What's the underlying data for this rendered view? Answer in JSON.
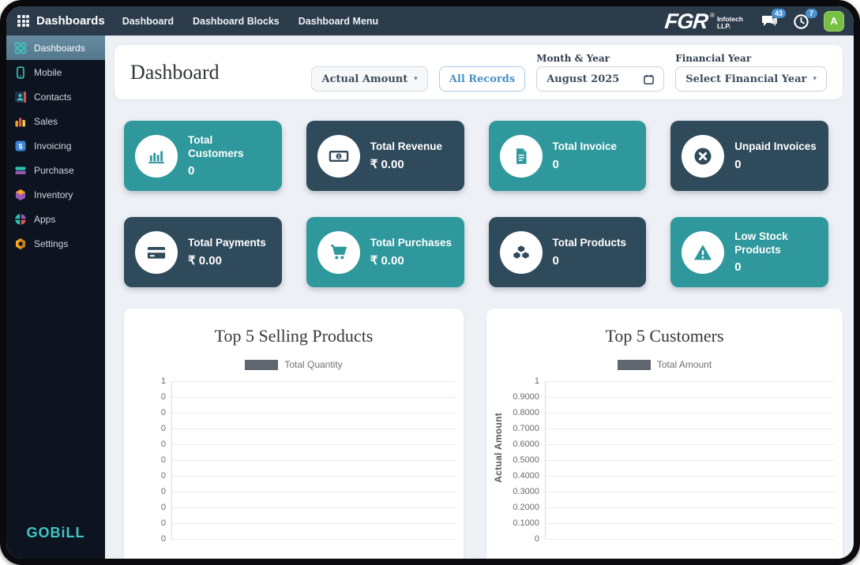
{
  "navbar": {
    "brand": "Dashboards",
    "links": [
      {
        "label": "Dashboard"
      },
      {
        "label": "Dashboard Blocks"
      },
      {
        "label": "Dashboard Menu"
      }
    ],
    "logo": {
      "text": "FGR",
      "reg": "®",
      "sub1": "Infotech",
      "sub2": "LLP."
    },
    "chat_badge": "43",
    "clock_badge": "7",
    "avatar_letter": "A"
  },
  "sidebar": {
    "items": [
      {
        "label": "Dashboards",
        "icon": "grid-icon",
        "active": true
      },
      {
        "label": "Mobile",
        "icon": "mobile-icon",
        "active": false
      },
      {
        "label": "Contacts",
        "icon": "contacts-icon",
        "active": false
      },
      {
        "label": "Sales",
        "icon": "sales-icon",
        "active": false
      },
      {
        "label": "Invoicing",
        "icon": "invoicing-icon",
        "active": false
      },
      {
        "label": "Purchase",
        "icon": "purchase-icon",
        "active": false
      },
      {
        "label": "Inventory",
        "icon": "inventory-icon",
        "active": false
      },
      {
        "label": "Apps",
        "icon": "apps-icon",
        "active": false
      },
      {
        "label": "Settings",
        "icon": "settings-icon",
        "active": false
      }
    ],
    "logo_text": "GOBiLL"
  },
  "header": {
    "title": "Dashboard",
    "metric_select_value": "Actual Amount",
    "all_records_label": "All Records",
    "month_year_label": "Month & Year",
    "month_year_value": "August 2025",
    "financial_year_label": "Financial Year",
    "financial_year_value": "Select Financial Year"
  },
  "stats": {
    "cards": [
      {
        "title": "Total Customers",
        "value": "0",
        "icon": "bar-chart-icon",
        "variant": "teal"
      },
      {
        "title": "Total Revenue",
        "value": "₹ 0.00",
        "icon": "banknote-icon",
        "variant": "navy"
      },
      {
        "title": "Total Invoice",
        "value": "0",
        "icon": "document-icon",
        "variant": "teal"
      },
      {
        "title": "Unpaid Invoices",
        "value": "0",
        "icon": "x-circle-icon",
        "variant": "navy"
      },
      {
        "title": "Total Payments",
        "value": "₹ 0.00",
        "icon": "credit-card-icon",
        "variant": "navy"
      },
      {
        "title": "Total Purchases",
        "value": "₹ 0.00",
        "icon": "cart-icon",
        "variant": "teal"
      },
      {
        "title": "Total Products",
        "value": "0",
        "icon": "cubes-icon",
        "variant": "navy"
      },
      {
        "title": "Low Stock Products",
        "value": "0",
        "icon": "warning-icon",
        "variant": "teal"
      }
    ]
  },
  "chart_data": [
    {
      "type": "bar",
      "title": "Top 5 Selling Products",
      "series_label": "Total Quantity",
      "categories": [],
      "values": [],
      "xlabel": "",
      "ylabel": "",
      "ylim": [
        0,
        1
      ],
      "yticks": [
        "1",
        "0",
        "0",
        "0",
        "0",
        "0",
        "0",
        "0",
        "0",
        "0",
        "0"
      ],
      "grid": true,
      "legend_position": "top"
    },
    {
      "type": "bar",
      "title": "Top 5 Customers",
      "series_label": "Total Amount",
      "categories": [],
      "values": [],
      "xlabel": "",
      "ylabel": "Actual Amount",
      "ylim": [
        0,
        1
      ],
      "yticks": [
        "1",
        "0.9000",
        "0.8000",
        "0.7000",
        "0.6000",
        "0.5000",
        "0.4000",
        "0.3000",
        "0.2000",
        "0.1000",
        "0"
      ],
      "grid": true,
      "legend_position": "top"
    }
  ],
  "colors": {
    "teal_card": "#2e989c",
    "navy_card": "#2f4a5b",
    "navbar_bg": "#2b3b49",
    "sidebar_bg": "#0d1420",
    "accent_teal": "#3fc6c4",
    "badge_blue": "#4a90d2",
    "avatar_green": "#77c043",
    "records_blue": "#4a90c4",
    "legend_swatch": "#5f666d"
  }
}
